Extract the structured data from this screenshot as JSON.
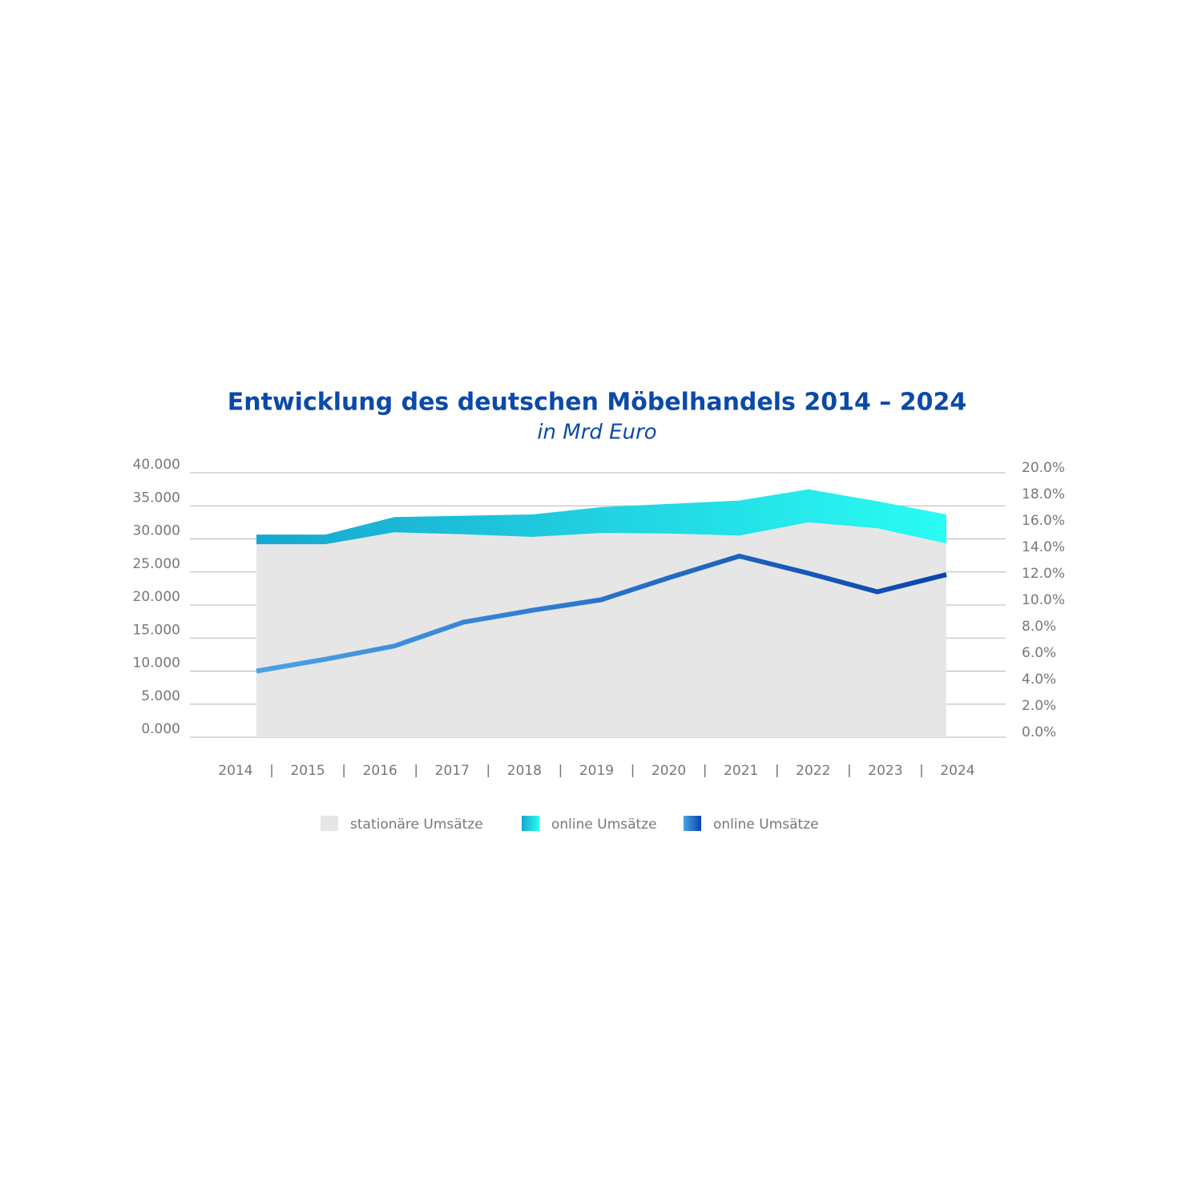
{
  "chart_data": {
    "type": "area",
    "title": "Entwicklung des deutschen Möbelhandels 2014 – 2024",
    "subtitle": "in Mrd Euro",
    "categories": [
      "2014",
      "2015",
      "2016",
      "2017",
      "2018",
      "2019",
      "2020",
      "2021",
      "2022",
      "2023",
      "2024"
    ],
    "series": [
      {
        "name": "stationäre Umsätze",
        "color": "#e6e6e6",
        "values": [
          29200,
          29200,
          31000,
          30700,
          30300,
          30900,
          30800,
          30500,
          32500,
          31600,
          29300
        ]
      },
      {
        "name": "online Umsätze",
        "color": [
          "#17a6cf",
          "#2afcf3"
        ],
        "values": [
          1450,
          1450,
          2300,
          2800,
          3400,
          3900,
          4500,
          5300,
          5000,
          4100,
          4400
        ]
      },
      {
        "name": "online Umsätze",
        "type": "line",
        "axis": "y2",
        "color": [
          "#4aa3e6",
          "#0a44ae"
        ],
        "values": [
          5.0,
          5.9,
          6.9,
          8.7,
          9.6,
          10.4,
          12.1,
          13.7,
          12.4,
          11.0,
          12.3
        ]
      }
    ],
    "ylim": [
      0,
      40000
    ],
    "yticks": [
      {
        "value": 0,
        "label": "0.000"
      },
      {
        "value": 5000,
        "label": "5.000"
      },
      {
        "value": 10000,
        "label": "10.000"
      },
      {
        "value": 15000,
        "label": "15.000"
      },
      {
        "value": 20000,
        "label": "20.000"
      },
      {
        "value": 25000,
        "label": "25.000"
      },
      {
        "value": 30000,
        "label": "30.000"
      },
      {
        "value": 35000,
        "label": "35.000"
      },
      {
        "value": 40000,
        "label": "40.000"
      }
    ],
    "y2lim": [
      0,
      20
    ],
    "y2ticks": [
      {
        "value": 0,
        "label": "0.0%"
      },
      {
        "value": 2,
        "label": "2.0%"
      },
      {
        "value": 4,
        "label": "4.0%"
      },
      {
        "value": 6,
        "label": "6.0%"
      },
      {
        "value": 8,
        "label": "8.0%"
      },
      {
        "value": 10,
        "label": "10.0%"
      },
      {
        "value": 12,
        "label": "12.0%"
      },
      {
        "value": 14,
        "label": "14.0%"
      },
      {
        "value": 16,
        "label": "16.0%"
      },
      {
        "value": 18,
        "label": "18.0%"
      },
      {
        "value": 20,
        "label": "20.0%"
      }
    ],
    "grid": true,
    "legend": "bottom"
  }
}
